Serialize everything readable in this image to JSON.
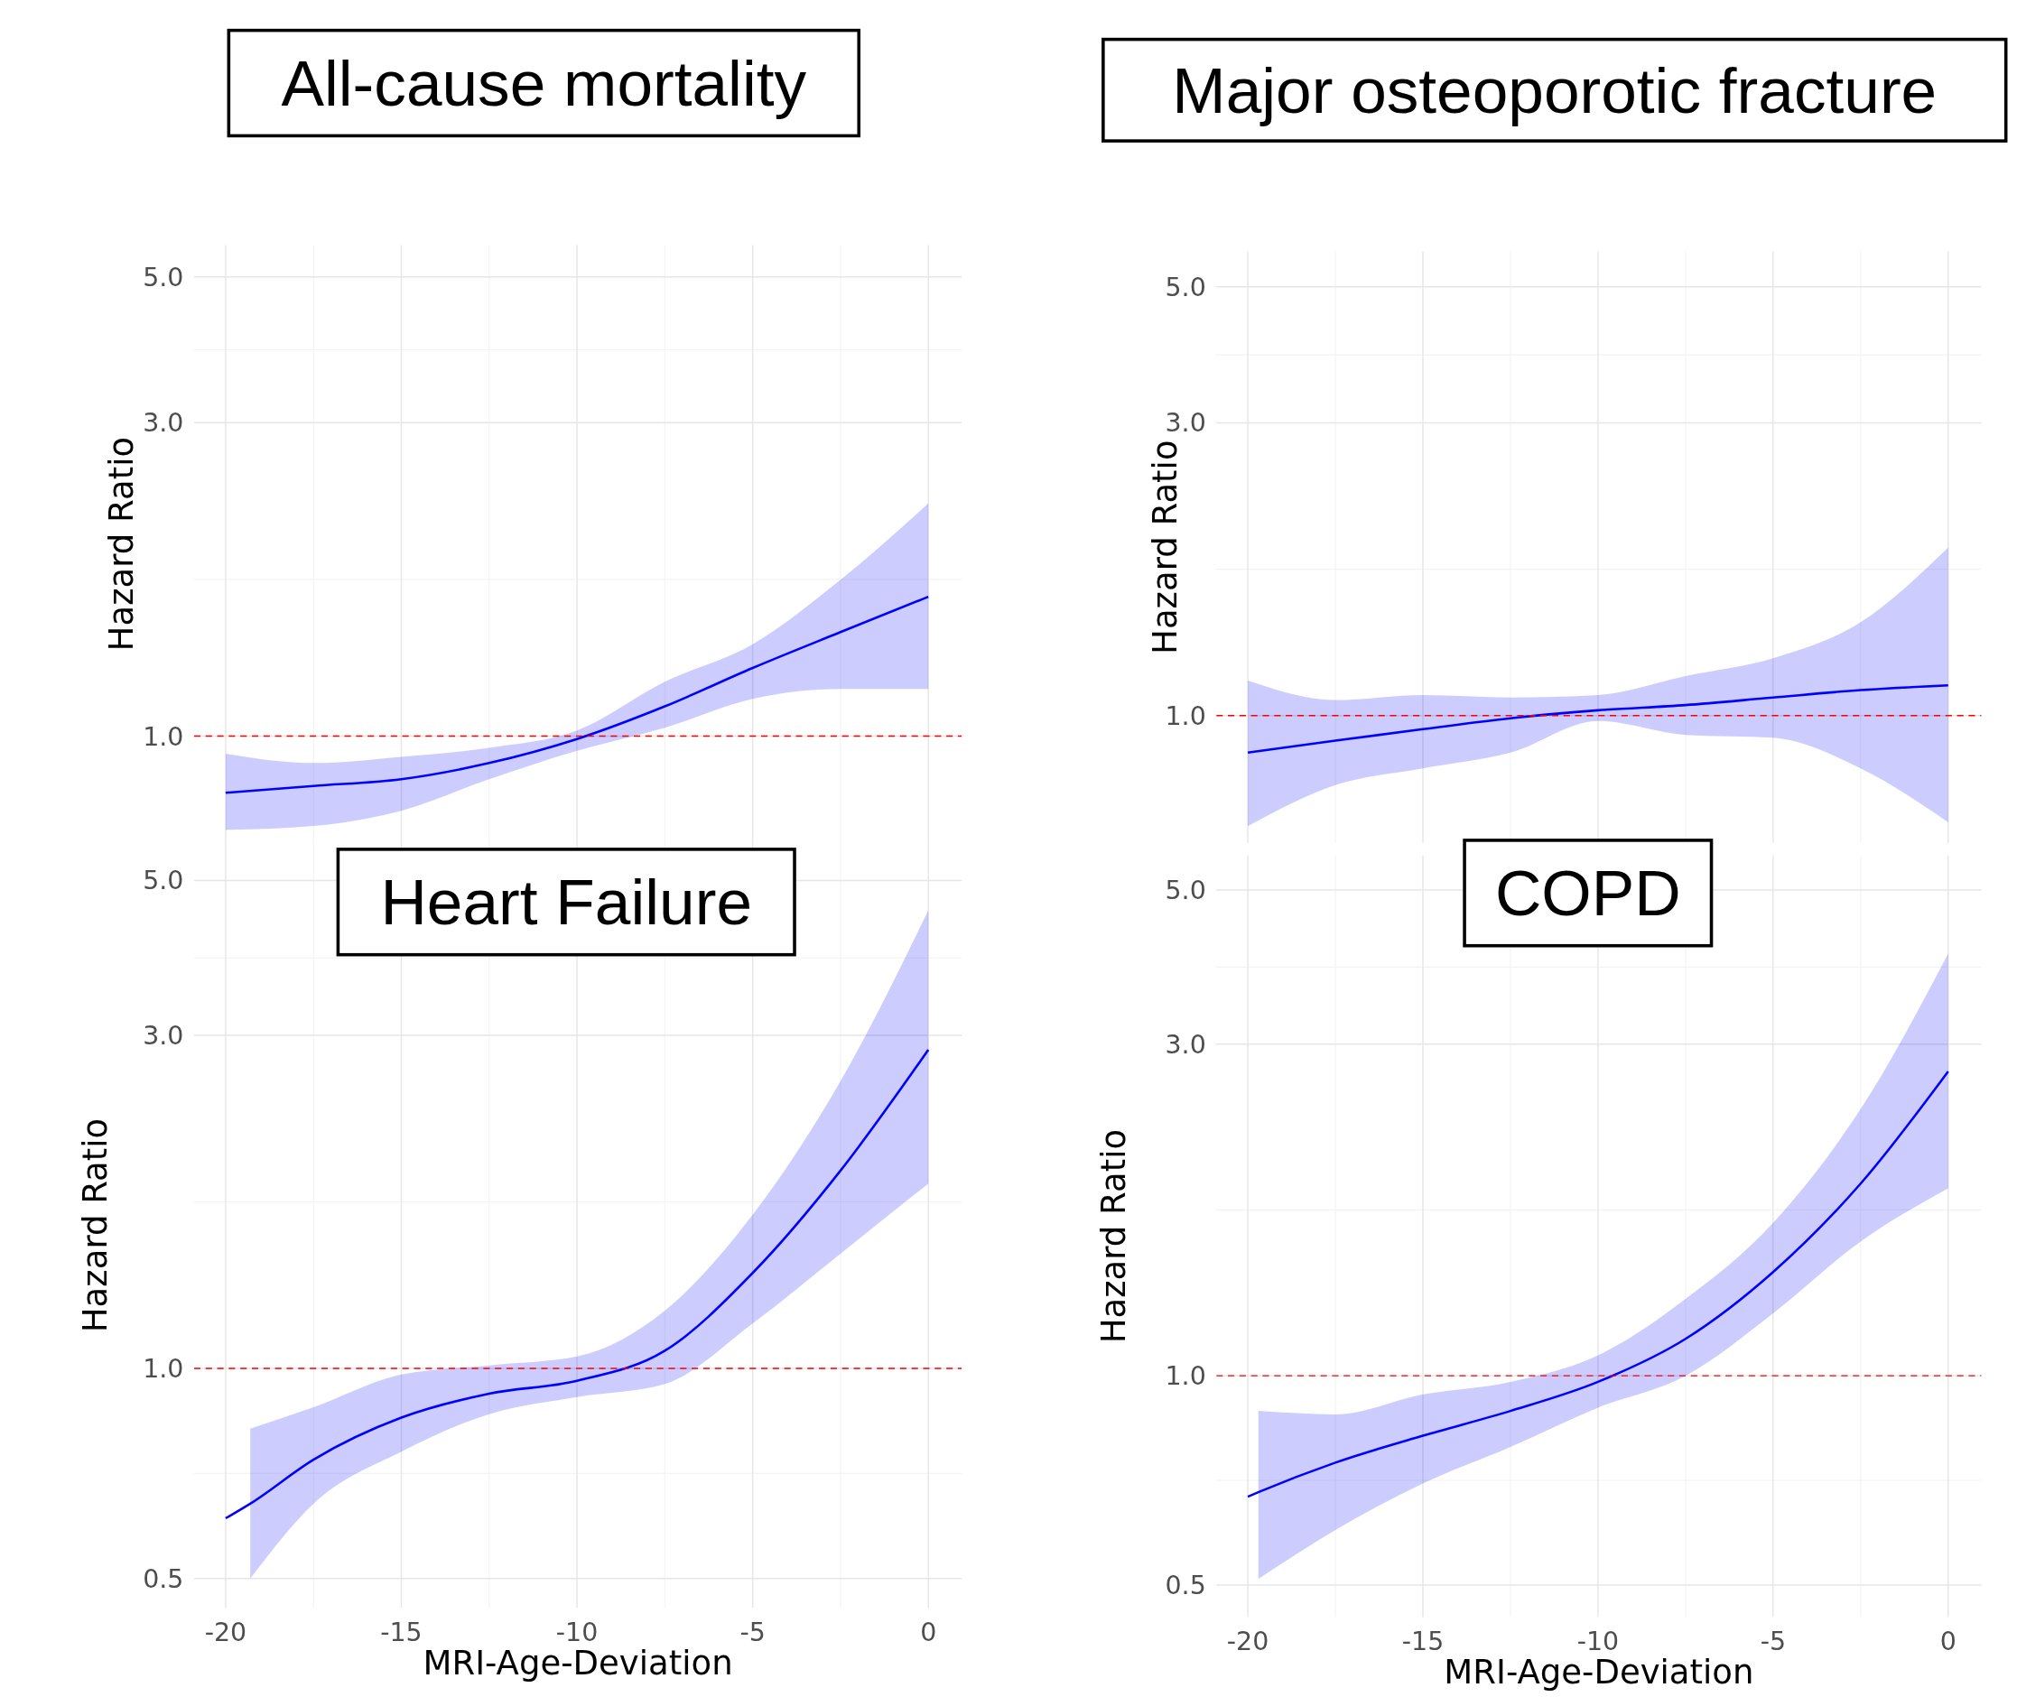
{
  "chart_data": [
    {
      "type": "line",
      "title": "All-cause mortality",
      "ylabel": "Hazard Ratio",
      "xlim": [
        -20.9,
        0.95
      ],
      "ylim": [
        0.688,
        5.59
      ],
      "log": "y",
      "grid": true,
      "tick_labels": "y",
      "xticks": [
        -20,
        -15,
        -10,
        -5,
        0
      ],
      "yticks": [
        {
          "value": 1,
          "label": "1.0"
        },
        {
          "value": 3,
          "label": "3.0"
        },
        {
          "value": 5,
          "label": "5.0"
        }
      ],
      "ref_lines": [
        {
          "axis": "y",
          "value": 1,
          "color": "#ff0000",
          "line_style": "dashed"
        }
      ],
      "series": [
        {
          "color": "#0000ff",
          "x": [
            -20,
            -17.5,
            -15,
            -12.5,
            -10,
            -7.5,
            -5,
            -2.5,
            0
          ],
          "values": [
            0.82,
            0.84,
            0.86,
            0.91,
            0.99,
            1.11,
            1.27,
            1.44,
            1.63
          ],
          "lower": [
            0.72,
            0.73,
            0.77,
            0.86,
            0.95,
            1.03,
            1.14,
            1.18,
            1.18
          ],
          "upper": [
            0.94,
            0.91,
            0.93,
            0.96,
            1.02,
            1.21,
            1.38,
            1.73,
            2.26
          ]
        }
      ]
    },
    {
      "type": "line",
      "title": "Major osteoporotic fracture",
      "ylabel": "Hazard Ratio",
      "xlim": [
        -20.9,
        0.95
      ],
      "ylim": [
        0.62,
        5.71
      ],
      "log": "y",
      "grid": true,
      "tick_labels": "y",
      "xticks": [
        -20,
        -15,
        -10,
        -5,
        0
      ],
      "yticks": [
        {
          "value": 1,
          "label": "1.0"
        },
        {
          "value": 3,
          "label": "3.0"
        },
        {
          "value": 5,
          "label": "5.0"
        }
      ],
      "ref_lines": [
        {
          "axis": "y",
          "value": 1,
          "color": "#ff0000",
          "line_style": "dashed"
        }
      ],
      "series": [
        {
          "color": "#0000ff",
          "x": [
            -20,
            -17.5,
            -15,
            -12.5,
            -10,
            -7.5,
            -5,
            -2.5,
            0
          ],
          "values": [
            0.87,
            0.91,
            0.95,
            0.99,
            1.02,
            1.04,
            1.07,
            1.1,
            1.12
          ],
          "lower": [
            0.66,
            0.77,
            0.82,
            0.87,
            0.98,
            0.93,
            0.92,
            0.82,
            0.67
          ],
          "upper": [
            1.14,
            1.06,
            1.08,
            1.07,
            1.08,
            1.16,
            1.24,
            1.42,
            1.88
          ]
        }
      ]
    },
    {
      "type": "line",
      "title": "Heart Failure",
      "ylabel": "Hazard Ratio",
      "xlabel": "MRI-Age-Deviation",
      "xlim": [
        -20.9,
        0.95
      ],
      "ylim": [
        0.454,
        5.66
      ],
      "log": "y",
      "grid": true,
      "xticks": [
        -20,
        -15,
        -10,
        -5,
        0
      ],
      "yticks": [
        0.5,
        {
          "value": 1,
          "label": "1.0"
        },
        {
          "value": 3,
          "label": "3.0"
        },
        {
          "value": 5,
          "label": "5.0"
        }
      ],
      "ref_lines": [
        {
          "axis": "y",
          "value": 1,
          "color": "#ff0000",
          "line_style": "dashed"
        }
      ],
      "series": [
        {
          "color": "#0000ff",
          "x": [
            -20,
            -19.3,
            -17.5,
            -15,
            -12.5,
            -10,
            -7.5,
            -5,
            -2.5,
            0
          ],
          "values": [
            0.61,
            0.64,
            0.74,
            0.85,
            0.92,
            0.96,
            1.06,
            1.37,
            1.92,
            2.86
          ],
          "lower": [
            null,
            0.5,
            0.64,
            0.76,
            0.86,
            0.91,
            0.95,
            1.16,
            1.46,
            1.84
          ],
          "upper": [
            null,
            0.82,
            0.88,
            0.98,
            1.01,
            1.04,
            1.21,
            1.66,
            2.58,
            4.53
          ]
        }
      ]
    },
    {
      "type": "line",
      "title": "COPD",
      "ylabel": "Hazard Ratio",
      "xlabel": "MRI-Age-Deviation",
      "xlim": [
        -20.9,
        0.95
      ],
      "ylim": [
        0.45,
        5.6
      ],
      "log": "y",
      "grid": true,
      "xticks": [
        -20,
        -15,
        -10,
        -5,
        0
      ],
      "yticks": [
        0.5,
        {
          "value": 1,
          "label": "1.0"
        },
        {
          "value": 3,
          "label": "3.0"
        },
        {
          "value": 5,
          "label": "5.0"
        }
      ],
      "ref_lines": [
        {
          "axis": "y",
          "value": 1,
          "color": "#ff0000",
          "line_style": "dashed"
        }
      ],
      "series": [
        {
          "color": "#0000ff",
          "x": [
            -20,
            -19.7,
            -17.5,
            -15,
            -12.5,
            -10,
            -7.5,
            -5,
            -2.5,
            0
          ],
          "values": [
            0.67,
            0.68,
            0.75,
            0.82,
            0.89,
            0.98,
            1.13,
            1.41,
            1.89,
            2.74
          ],
          "lower": [
            null,
            0.51,
            0.6,
            0.7,
            0.79,
            0.9,
            1.0,
            1.23,
            1.56,
            1.86
          ],
          "upper": [
            null,
            0.89,
            0.88,
            0.94,
            0.98,
            1.07,
            1.29,
            1.66,
            2.42,
            4.05
          ]
        }
      ]
    }
  ]
}
